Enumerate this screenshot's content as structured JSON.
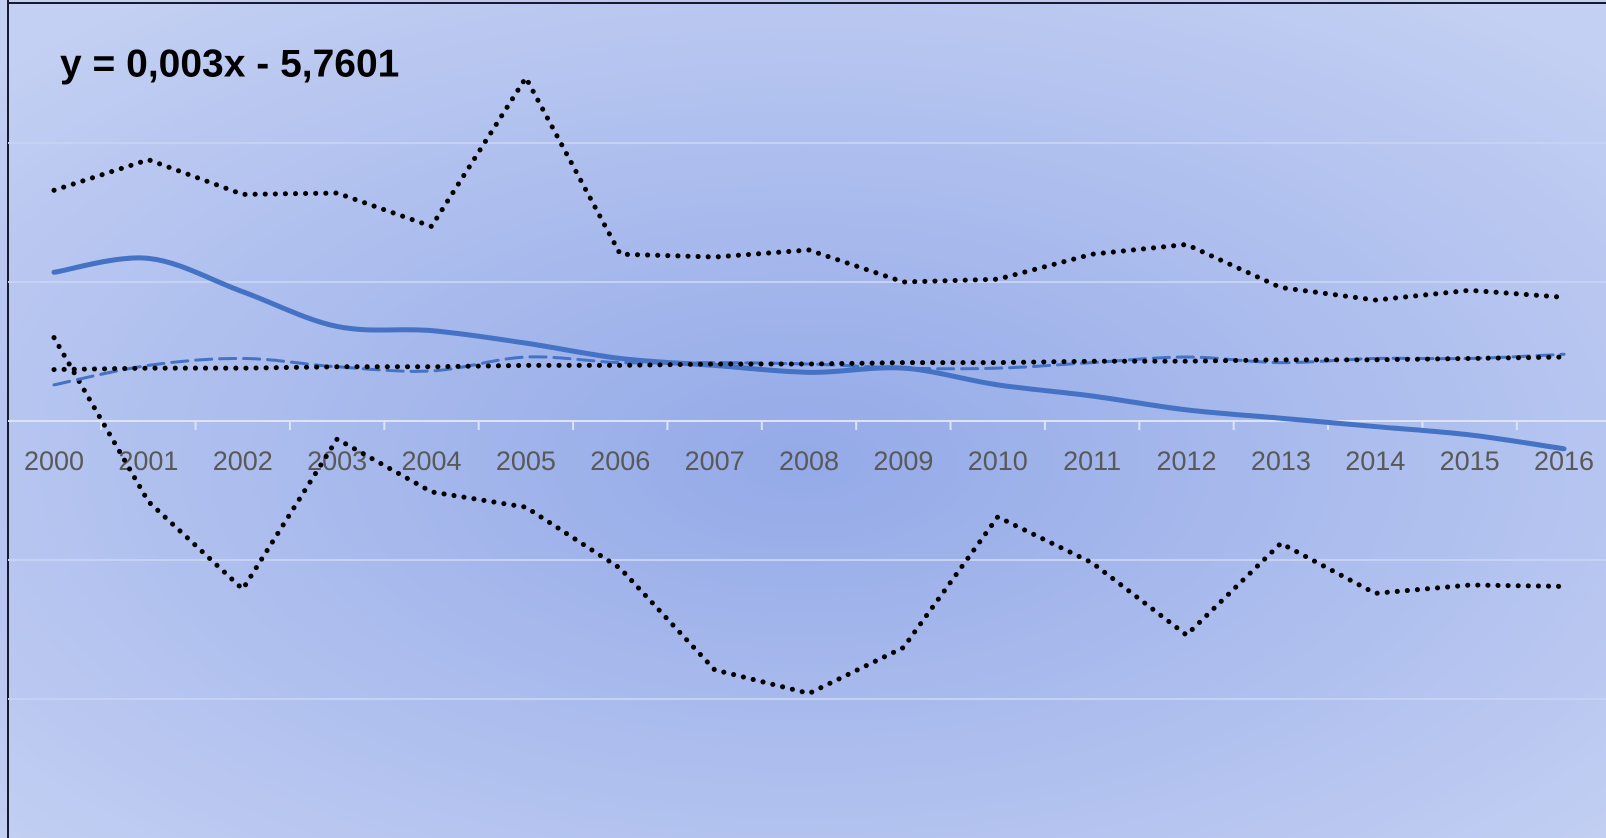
{
  "chart_data": {
    "type": "line",
    "annotation": "y = 0,003x - 5,7601",
    "categories": [
      "2000",
      "2001",
      "2002",
      "2003",
      "2004",
      "2005",
      "2006",
      "2007",
      "2008",
      "2009",
      "2010",
      "2011",
      "2012",
      "2013",
      "2014",
      "2015",
      "2016"
    ],
    "series": [
      {
        "color": "#000000",
        "style": "dotted",
        "smooth": false,
        "values": [
          1.66,
          1.88,
          1.63,
          1.64,
          1.4,
          2.47,
          1.2,
          1.18,
          1.23,
          1.0,
          1.02,
          1.2,
          1.27,
          0.96,
          0.87,
          0.94,
          0.89
        ]
      },
      {
        "color": "#000000",
        "style": "dotted",
        "smooth": false,
        "values": [
          0.6,
          -0.58,
          -1.21,
          -0.13,
          -0.51,
          -0.62,
          -1.06,
          -1.79,
          -1.96,
          -1.63,
          -0.69,
          -1.02,
          -1.54,
          -0.88,
          -1.24,
          -1.18,
          -1.19
        ]
      },
      {
        "color": "#4472c4",
        "style": "solid",
        "smooth": true,
        "values": [
          1.07,
          1.17,
          0.93,
          0.68,
          0.65,
          0.56,
          0.45,
          0.4,
          0.35,
          0.38,
          0.26,
          0.18,
          0.08,
          0.02,
          -0.04,
          -0.1,
          -0.2
        ]
      },
      {
        "color": "#4472c4",
        "style": "dashed",
        "smooth": true,
        "values": [
          0.26,
          0.4,
          0.45,
          0.39,
          0.36,
          0.46,
          0.42,
          0.42,
          0.41,
          0.38,
          0.38,
          0.42,
          0.46,
          0.42,
          0.45,
          0.45,
          0.48
        ]
      },
      {
        "color": "#000000",
        "style": "dotted",
        "smooth": false,
        "values": [
          0.37,
          0.38,
          0.38,
          0.39,
          0.39,
          0.4,
          0.4,
          0.41,
          0.41,
          0.42,
          0.42,
          0.43,
          0.43,
          0.44,
          0.44,
          0.45,
          0.46
        ]
      }
    ],
    "ylim": [
      -3,
      3
    ],
    "yticks": [
      -2,
      -1,
      0,
      1,
      2
    ],
    "grid": true
  }
}
